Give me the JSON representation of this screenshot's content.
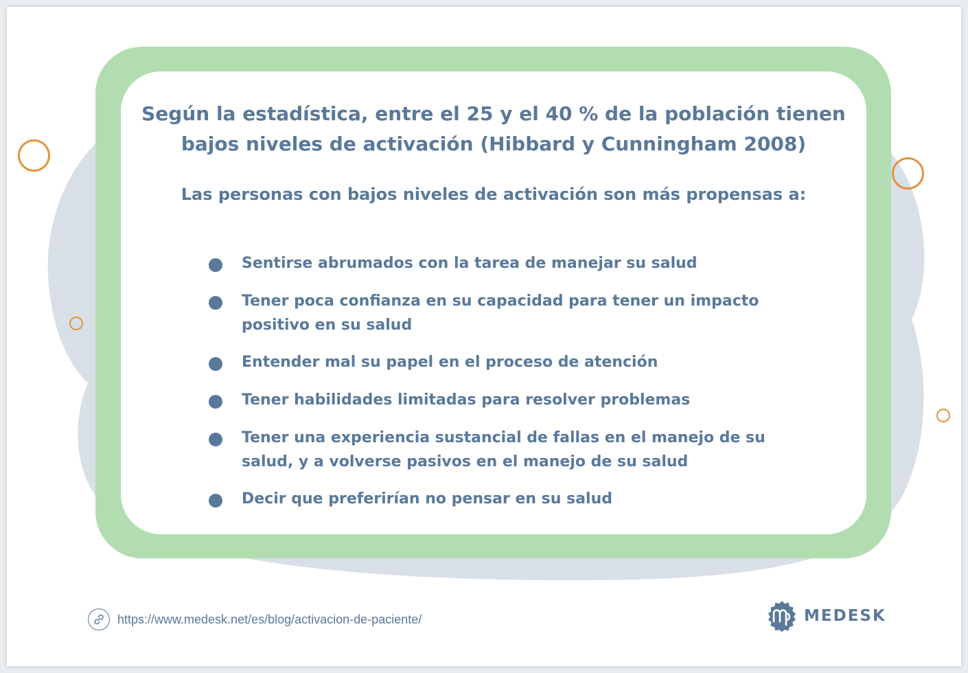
{
  "headline": {
    "line1": "Según la estadística, entre el 25 y el 40 % de la población tienen",
    "line2": "bajos niveles de activación (Hibbard y Cunningham 2008)"
  },
  "subheading": "Las personas con bajos niveles de activación son más propensas a:",
  "bullets": [
    {
      "line1": "Sentirse abrumados con la tarea de manejar su salud",
      "line2": ""
    },
    {
      "line1": "Tener poca confianza en su capacidad para tener un impacto",
      "line2": "positivo en su salud"
    },
    {
      "line1": "Entender mal su papel en el proceso de atención",
      "line2": ""
    },
    {
      "line1": "Tener habilidades limitadas para resolver problemas",
      "line2": ""
    },
    {
      "line1": "Tener una experiencia sustancial de fallas en el manejo de su",
      "line2": "salud, y a volverse pasivos en el manejo de su salud"
    },
    {
      "line1": "Decir que preferirían no pensar en su salud",
      "line2": ""
    }
  ],
  "footer": {
    "url": "https://www.medesk.net/es/blog/activacion-de-paciente/",
    "link_icon": "link-icon",
    "logo_text": "MEDESK",
    "logo_icon": "medesk-logo-icon"
  },
  "colors": {
    "frame_green": "#b1ddb0",
    "text_blue": "#59799b",
    "blob_gray": "#d8dfe7",
    "ring_orange": "#e0953f"
  }
}
